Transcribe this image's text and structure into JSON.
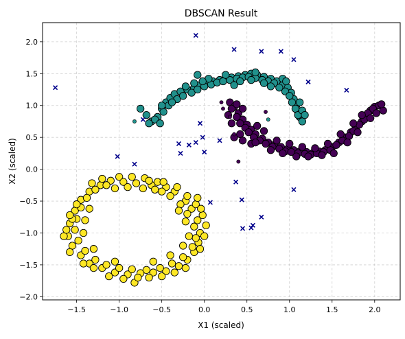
{
  "chart_data": {
    "type": "scatter",
    "title": "DBSCAN Result",
    "xlabel": "X1 (scaled)",
    "ylabel": "X2 (scaled)",
    "xlim": [
      -1.9,
      2.3
    ],
    "ylim": [
      -2.05,
      2.3
    ],
    "xticks": [
      -1.5,
      -1.0,
      -0.5,
      0.0,
      0.5,
      1.0,
      1.5,
      2.0
    ],
    "xtick_labels": [
      "−1.5",
      "−1.0",
      "−0.5",
      "0.0",
      "0.5",
      "1.0",
      "1.5",
      "2.0"
    ],
    "yticks": [
      -2.0,
      -1.5,
      -1.0,
      -0.5,
      0.0,
      0.5,
      1.0,
      1.5,
      2.0
    ],
    "ytick_labels": [
      "−2.0",
      "−1.5",
      "−1.0",
      "−0.5",
      "0.0",
      "0.5",
      "1.0",
      "1.5",
      "2.0"
    ],
    "grid": true,
    "legend": false,
    "series": [
      {
        "color": "#fde725",
        "marker": "circle",
        "points": [
          [
            -1.0,
            -0.12
          ],
          [
            -0.85,
            -0.12
          ],
          [
            -0.7,
            -0.14
          ],
          [
            -0.55,
            -0.2
          ],
          [
            -0.45,
            -0.28
          ],
          [
            -0.35,
            -0.35
          ],
          [
            -0.22,
            -0.5
          ],
          [
            -0.15,
            -0.62
          ],
          [
            -0.08,
            -0.8
          ],
          [
            -0.05,
            -1.0
          ],
          [
            -0.07,
            -1.15
          ],
          [
            -0.12,
            -1.3
          ],
          [
            -0.2,
            -1.42
          ],
          [
            -0.3,
            -1.52
          ],
          [
            -0.45,
            -1.6
          ],
          [
            -0.6,
            -1.62
          ],
          [
            -0.75,
            -1.63
          ],
          [
            -0.9,
            -1.65
          ],
          [
            -1.05,
            -1.62
          ],
          [
            -1.2,
            -1.55
          ],
          [
            -1.35,
            -1.48
          ],
          [
            -1.45,
            -1.35
          ],
          [
            -1.55,
            -1.2
          ],
          [
            -1.6,
            -1.05
          ],
          [
            -1.58,
            -0.85
          ],
          [
            -1.52,
            -0.65
          ],
          [
            -1.45,
            -0.48
          ],
          [
            -1.35,
            -0.35
          ],
          [
            -1.22,
            -0.25
          ],
          [
            -1.1,
            -0.18
          ],
          [
            -0.95,
            -0.2
          ],
          [
            -0.8,
            -0.22
          ],
          [
            -0.62,
            -0.25
          ],
          [
            -0.5,
            -0.35
          ],
          [
            -0.4,
            -0.42
          ],
          [
            -0.28,
            -0.55
          ],
          [
            -0.2,
            -0.7
          ],
          [
            -0.12,
            -0.9
          ],
          [
            -0.1,
            -1.08
          ],
          [
            -0.14,
            -1.22
          ],
          [
            -0.25,
            -1.38
          ],
          [
            -0.38,
            -1.48
          ],
          [
            -0.52,
            -1.55
          ],
          [
            -0.68,
            -1.58
          ],
          [
            -0.85,
            -1.57
          ],
          [
            -1.0,
            -1.55
          ],
          [
            -1.15,
            -1.5
          ],
          [
            -1.28,
            -1.42
          ],
          [
            -1.4,
            -1.28
          ],
          [
            -1.48,
            -1.12
          ],
          [
            -1.52,
            -0.95
          ],
          [
            -1.5,
            -0.78
          ],
          [
            -1.45,
            -0.6
          ],
          [
            -1.38,
            -0.45
          ],
          [
            -1.28,
            -0.32
          ],
          [
            -1.15,
            -0.25
          ],
          [
            -1.05,
            -0.3
          ],
          [
            -0.9,
            -0.28
          ],
          [
            -0.72,
            -0.3
          ],
          [
            -0.58,
            -0.32
          ],
          [
            -1.65,
            -1.05
          ],
          [
            -1.62,
            -0.95
          ],
          [
            -1.55,
            -0.78
          ],
          [
            -1.42,
            -1.48
          ],
          [
            -1.3,
            -1.55
          ],
          [
            -1.12,
            -1.68
          ],
          [
            -0.95,
            -1.72
          ],
          [
            -0.82,
            -1.78
          ],
          [
            -0.78,
            -1.7
          ],
          [
            -0.65,
            -1.7
          ],
          [
            -0.5,
            -1.68
          ],
          [
            -0.35,
            -1.62
          ],
          [
            -0.22,
            -1.55
          ],
          [
            -0.05,
            -1.25
          ],
          [
            0.0,
            -1.05
          ],
          [
            0.02,
            -0.88
          ],
          [
            -0.02,
            -0.72
          ],
          [
            -0.1,
            -0.55
          ],
          [
            -0.2,
            -0.42
          ],
          [
            -0.32,
            -0.28
          ],
          [
            -0.48,
            -0.2
          ],
          [
            -0.65,
            -0.18
          ],
          [
            -1.2,
            -0.15
          ],
          [
            -1.32,
            -0.22
          ],
          [
            -1.5,
            -0.55
          ],
          [
            -1.58,
            -0.72
          ],
          [
            -1.58,
            -1.3
          ],
          [
            -0.25,
            -1.2
          ],
          [
            -0.18,
            -1.05
          ],
          [
            -0.22,
            -0.82
          ],
          [
            -0.3,
            -0.65
          ],
          [
            -1.35,
            -0.62
          ],
          [
            -1.4,
            -0.8
          ],
          [
            -1.42,
            -1.0
          ],
          [
            -1.3,
            -1.25
          ],
          [
            -0.08,
            -0.45
          ],
          [
            -0.04,
            -0.62
          ],
          [
            -1.05,
            -1.45
          ],
          [
            -0.6,
            -1.45
          ],
          [
            -0.4,
            -1.35
          ]
        ]
      },
      {
        "color": "#21918c",
        "marker": "circle",
        "points": [
          [
            -0.75,
            0.95
          ],
          [
            -0.68,
            0.85
          ],
          [
            -0.62,
            0.75
          ],
          [
            -0.55,
            0.82
          ],
          [
            -0.5,
            0.95
          ],
          [
            -0.45,
            1.05
          ],
          [
            -0.4,
            1.12
          ],
          [
            -0.35,
            1.18
          ],
          [
            -0.28,
            1.22
          ],
          [
            -0.2,
            1.25
          ],
          [
            -0.12,
            1.28
          ],
          [
            -0.05,
            1.32
          ],
          [
            0.02,
            1.35
          ],
          [
            0.1,
            1.38
          ],
          [
            0.18,
            1.4
          ],
          [
            0.25,
            1.42
          ],
          [
            0.32,
            1.44
          ],
          [
            0.4,
            1.46
          ],
          [
            0.48,
            1.48
          ],
          [
            0.55,
            1.5
          ],
          [
            0.62,
            1.48
          ],
          [
            0.7,
            1.45
          ],
          [
            0.78,
            1.42
          ],
          [
            0.85,
            1.38
          ],
          [
            0.92,
            1.32
          ],
          [
            0.98,
            1.28
          ],
          [
            1.02,
            1.2
          ],
          [
            1.05,
            1.1
          ],
          [
            1.08,
            1.0
          ],
          [
            1.1,
            0.9
          ],
          [
            1.12,
            0.82
          ],
          [
            1.15,
            0.75
          ],
          [
            -0.65,
            0.72
          ],
          [
            -0.58,
            0.78
          ],
          [
            -0.48,
            0.9
          ],
          [
            -0.42,
            1.0
          ],
          [
            -0.32,
            1.1
          ],
          [
            -0.25,
            1.15
          ],
          [
            -0.15,
            1.2
          ],
          [
            -0.08,
            1.25
          ],
          [
            0.0,
            1.3
          ],
          [
            0.08,
            1.33
          ],
          [
            0.15,
            1.36
          ],
          [
            0.22,
            1.38
          ],
          [
            0.3,
            1.4
          ],
          [
            0.38,
            1.42
          ],
          [
            0.45,
            1.44
          ],
          [
            0.52,
            1.45
          ],
          [
            0.6,
            1.43
          ],
          [
            0.68,
            1.4
          ],
          [
            0.75,
            1.38
          ],
          [
            0.82,
            1.35
          ],
          [
            0.88,
            1.28
          ],
          [
            0.95,
            1.22
          ],
          [
            1.0,
            1.15
          ],
          [
            1.03,
            1.05
          ],
          [
            1.07,
            0.95
          ],
          [
            1.1,
            0.85
          ],
          [
            -0.52,
            0.72
          ],
          [
            0.35,
            1.32
          ],
          [
            0.6,
            1.52
          ],
          [
            -0.08,
            1.48
          ],
          [
            0.25,
            1.48
          ],
          [
            0.42,
            1.38
          ],
          [
            0.92,
            1.42
          ],
          [
            0.96,
            1.38
          ],
          [
            1.12,
            1.05
          ],
          [
            1.15,
            0.92
          ],
          [
            1.18,
            0.85
          ],
          [
            -0.5,
            1.0
          ],
          [
            -0.38,
            1.05
          ],
          [
            -0.22,
            1.3
          ],
          [
            0.7,
            1.35
          ],
          [
            0.78,
            1.3
          ],
          [
            0.05,
            1.42
          ],
          [
            -0.12,
            1.35
          ],
          [
            -0.02,
            1.38
          ],
          [
            0.55,
            1.4
          ]
        ]
      },
      {
        "color": "#440154",
        "marker": "circle",
        "points": [
          [
            0.3,
            1.05
          ],
          [
            0.35,
            0.98
          ],
          [
            0.4,
            0.88
          ],
          [
            0.45,
            0.78
          ],
          [
            0.5,
            0.7
          ],
          [
            0.55,
            0.62
          ],
          [
            0.6,
            0.55
          ],
          [
            0.68,
            0.48
          ],
          [
            0.75,
            0.42
          ],
          [
            0.82,
            0.38
          ],
          [
            0.9,
            0.35
          ],
          [
            0.98,
            0.32
          ],
          [
            1.05,
            0.3
          ],
          [
            1.12,
            0.28
          ],
          [
            1.2,
            0.27
          ],
          [
            1.28,
            0.26
          ],
          [
            1.35,
            0.28
          ],
          [
            1.42,
            0.3
          ],
          [
            1.5,
            0.35
          ],
          [
            1.58,
            0.42
          ],
          [
            1.65,
            0.5
          ],
          [
            1.72,
            0.58
          ],
          [
            1.78,
            0.65
          ],
          [
            1.85,
            0.75
          ],
          [
            1.9,
            0.85
          ],
          [
            1.95,
            0.92
          ],
          [
            2.0,
            0.98
          ],
          [
            2.05,
            1.0
          ],
          [
            2.1,
            0.92
          ],
          [
            0.32,
            0.95
          ],
          [
            0.38,
            0.82
          ],
          [
            0.42,
            0.72
          ],
          [
            0.48,
            0.65
          ],
          [
            0.52,
            0.58
          ],
          [
            0.58,
            0.5
          ],
          [
            0.65,
            0.45
          ],
          [
            0.72,
            0.4
          ],
          [
            0.8,
            0.35
          ],
          [
            0.88,
            0.32
          ],
          [
            0.95,
            0.28
          ],
          [
            1.02,
            0.27
          ],
          [
            1.1,
            0.25
          ],
          [
            1.18,
            0.24
          ],
          [
            1.25,
            0.23
          ],
          [
            1.32,
            0.25
          ],
          [
            1.4,
            0.27
          ],
          [
            1.48,
            0.3
          ],
          [
            1.55,
            0.38
          ],
          [
            1.62,
            0.45
          ],
          [
            1.7,
            0.52
          ],
          [
            1.75,
            0.6
          ],
          [
            1.82,
            0.7
          ],
          [
            1.88,
            0.78
          ],
          [
            1.92,
            0.88
          ],
          [
            1.98,
            0.95
          ],
          [
            2.02,
            0.88
          ],
          [
            0.35,
            0.5
          ],
          [
            0.42,
            0.55
          ],
          [
            0.45,
            0.45
          ],
          [
            0.55,
            0.4
          ],
          [
            0.28,
            0.85
          ],
          [
            0.32,
            0.72
          ],
          [
            0.62,
            0.68
          ],
          [
            0.7,
            0.6
          ],
          [
            0.85,
            0.45
          ],
          [
            1.0,
            0.4
          ],
          [
            1.15,
            0.35
          ],
          [
            1.3,
            0.33
          ],
          [
            1.45,
            0.4
          ],
          [
            1.6,
            0.55
          ],
          [
            1.75,
            0.72
          ],
          [
            1.85,
            0.85
          ],
          [
            0.45,
            0.95
          ],
          [
            0.38,
            1.02
          ],
          [
            0.6,
            0.42
          ],
          [
            0.78,
            0.3
          ],
          [
            0.92,
            0.25
          ],
          [
            1.08,
            0.2
          ],
          [
            1.22,
            0.2
          ],
          [
            1.38,
            0.22
          ],
          [
            1.52,
            0.25
          ],
          [
            1.68,
            0.42
          ],
          [
            1.8,
            0.58
          ],
          [
            1.95,
            0.8
          ],
          [
            2.08,
            1.02
          ]
        ]
      }
    ],
    "small_points": [
      {
        "x": 0.22,
        "y": 0.95,
        "color": "#440154"
      },
      {
        "x": 0.3,
        "y": 0.82,
        "color": "#440154"
      },
      {
        "x": 0.35,
        "y": 0.55,
        "color": "#440154"
      },
      {
        "x": 0.4,
        "y": 0.12,
        "color": "#440154"
      },
      {
        "x": 0.75,
        "y": 0.78,
        "color": "#21918c"
      },
      {
        "x": -0.82,
        "y": 0.75,
        "color": "#21918c"
      },
      {
        "x": 0.2,
        "y": 1.05,
        "color": "#440154"
      },
      {
        "x": 0.72,
        "y": 0.9,
        "color": "#440154"
      }
    ],
    "noise": {
      "color": "#00008b",
      "marker": "x",
      "points": [
        [
          -1.75,
          1.28
        ],
        [
          -0.1,
          2.1
        ],
        [
          0.35,
          1.88
        ],
        [
          0.67,
          1.85
        ],
        [
          0.9,
          1.85
        ],
        [
          1.05,
          1.72
        ],
        [
          1.22,
          1.37
        ],
        [
          1.67,
          1.24
        ],
        [
          -0.72,
          0.78
        ],
        [
          -0.05,
          0.72
        ],
        [
          -0.3,
          0.4
        ],
        [
          -0.18,
          0.38
        ],
        [
          -0.1,
          0.42
        ],
        [
          -0.02,
          0.5
        ],
        [
          0.18,
          0.45
        ],
        [
          -0.28,
          0.25
        ],
        [
          0.0,
          0.27
        ],
        [
          -1.02,
          0.2
        ],
        [
          -0.82,
          0.08
        ],
        [
          0.37,
          -0.2
        ],
        [
          1.05,
          -0.32
        ],
        [
          0.07,
          -0.52
        ],
        [
          0.44,
          -0.48
        ],
        [
          0.67,
          -0.75
        ],
        [
          0.57,
          -0.88
        ],
        [
          0.55,
          -0.92
        ],
        [
          0.45,
          -0.93
        ]
      ]
    }
  }
}
